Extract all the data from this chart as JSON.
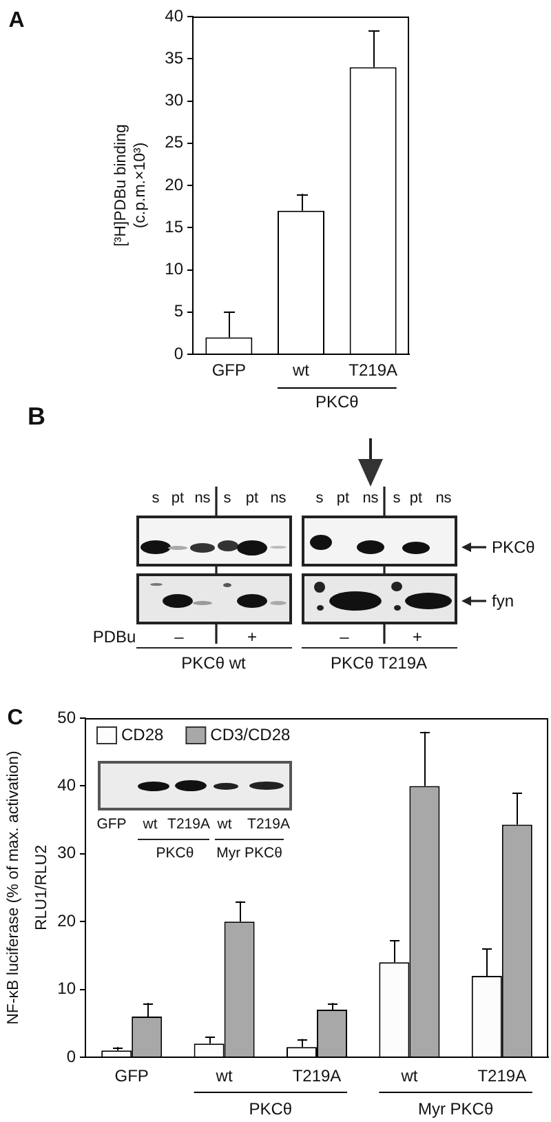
{
  "chart_data": [
    {
      "type": "bar",
      "categories": [
        "GFP",
        "wt",
        "T219A"
      ],
      "values": [
        2,
        17,
        34
      ],
      "color": "#ffffff",
      "errors": [
        [
          2,
          5
        ],
        [
          17,
          19
        ],
        [
          34,
          38.3
        ]
      ],
      "ylabel": "[³H]PDBu binding\n(c.p.m.×10³)",
      "ylim": [
        0,
        40
      ],
      "yticks": [
        0,
        5,
        10,
        15,
        20,
        25,
        30,
        35,
        40
      ],
      "annotations": [
        "A",
        "PKCθ"
      ]
    },
    {
      "type": "other",
      "annotations": [
        "B",
        "s",
        "pt",
        "ns",
        "s",
        "pt",
        "ns",
        "s",
        "pt",
        "ns",
        "s",
        "pt",
        "ns",
        "PKCθ",
        "fyn",
        "PDBu",
        "–",
        "+",
        "–",
        "+",
        "PKCθ wt",
        "PKCθ T219A"
      ]
    },
    {
      "type": "bar",
      "categories": [
        "GFP",
        "wt",
        "T219A",
        "wt",
        "T219A"
      ],
      "series": [
        {
          "name": "CD28",
          "color": "#fcfcfc",
          "values": [
            1,
            2,
            1.5,
            14,
            12
          ],
          "errors": [
            [
              1,
              1.5
            ],
            [
              2,
              3
            ],
            [
              1.5,
              2.7
            ],
            [
              14,
              17.2
            ],
            [
              12,
              16
            ]
          ]
        },
        {
          "name": "CD3/CD28",
          "color": "#a8a8a8",
          "values": [
            6,
            20,
            7,
            40,
            34.3
          ],
          "errors": [
            [
              6,
              8
            ],
            [
              20,
              23
            ],
            [
              7,
              8
            ],
            [
              40,
              48
            ],
            [
              34.3,
              39
            ]
          ]
        }
      ],
      "ylabel": "NF-κB luciferase (% of max. activation)\nRLU1/RLU2",
      "ylim": [
        0,
        50
      ],
      "yticks": [
        0,
        10,
        20,
        30,
        40,
        50
      ],
      "legend": "top left",
      "annotations": [
        "C",
        "PKCθ",
        "Myr PKCθ",
        "GFP",
        "wt",
        "T219A",
        "wt",
        "T219A",
        "PKCθ",
        "Myr PKCθ"
      ]
    }
  ]
}
